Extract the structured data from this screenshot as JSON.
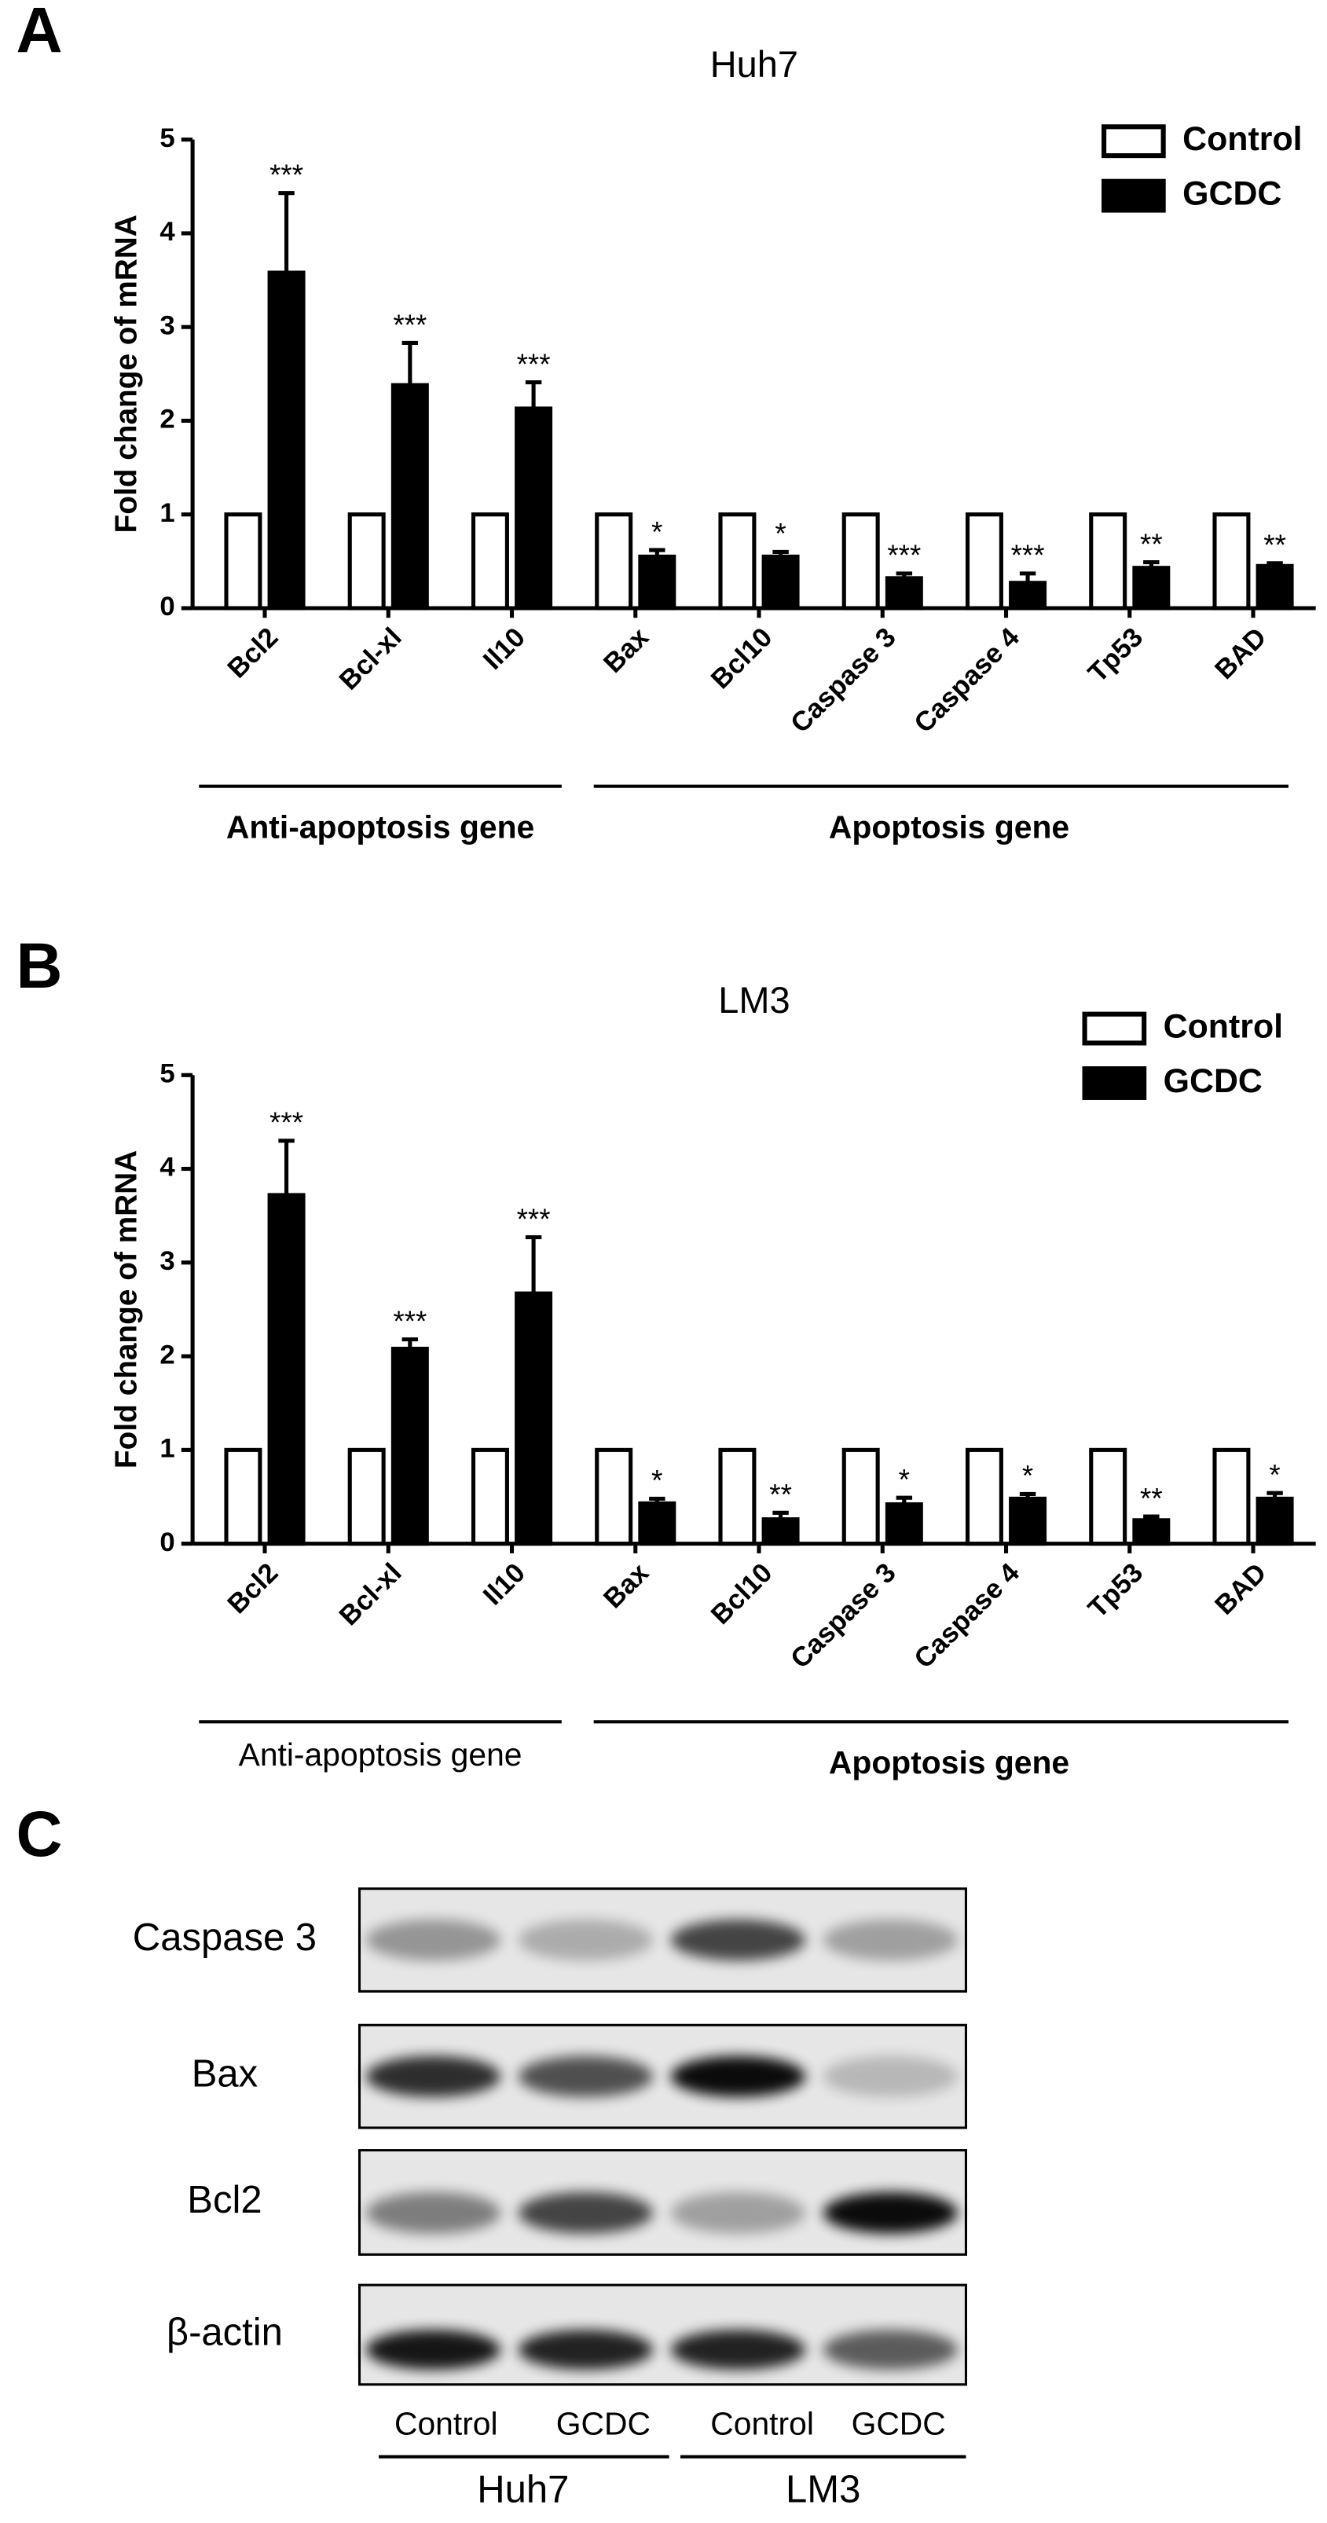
{
  "chart_data": [
    {
      "type": "bar",
      "panel": "A",
      "title": "Huh7",
      "ylabel": "Fold change of mRNA",
      "categories": [
        "Bcl2",
        "Bcl-xl",
        "Il10",
        "Bax",
        "Bcl10",
        "Caspase 3",
        "Caspase 4",
        "Tp53",
        "BAD"
      ],
      "series": [
        {
          "name": "Control",
          "color": "#ffffff",
          "values": [
            1,
            1,
            1,
            1,
            1,
            1,
            1,
            1,
            1
          ]
        },
        {
          "name": "GCDC",
          "color": "#000000",
          "values": [
            3.58,
            2.38,
            2.13,
            0.55,
            0.55,
            0.32,
            0.27,
            0.43,
            0.45
          ],
          "errors": [
            0.85,
            0.45,
            0.28,
            0.07,
            0.05,
            0.05,
            0.1,
            0.06,
            0.03
          ]
        }
      ],
      "annotations": [
        "***",
        "***",
        "***",
        "*",
        "*",
        "***",
        "***",
        "**",
        "**"
      ],
      "group_labels": [
        "Anti-apoptosis gene",
        "Apoptosis gene"
      ],
      "group_label_bold": [
        true,
        true
      ],
      "ylim": [
        0,
        5
      ],
      "yticks": [
        0,
        1,
        2,
        3,
        4,
        5
      ],
      "legend": "upper right"
    },
    {
      "type": "bar",
      "panel": "B",
      "title": "LM3",
      "ylabel": "Fold change of mRNA",
      "categories": [
        "Bcl2",
        "Bcl-xl",
        "Il10",
        "Bax",
        "Bcl10",
        "Caspase 3",
        "Caspase 4",
        "Tp53",
        "BAD"
      ],
      "series": [
        {
          "name": "Control",
          "color": "#ffffff",
          "values": [
            1,
            1,
            1,
            1,
            1,
            1,
            1,
            1,
            1
          ]
        },
        {
          "name": "GCDC",
          "color": "#000000",
          "values": [
            3.72,
            2.08,
            2.67,
            0.43,
            0.26,
            0.42,
            0.48,
            0.25,
            0.48
          ],
          "errors": [
            0.58,
            0.1,
            0.6,
            0.05,
            0.07,
            0.07,
            0.05,
            0.04,
            0.06
          ]
        }
      ],
      "annotations": [
        "***",
        "***",
        "***",
        "*",
        "**",
        "*",
        "*",
        "**",
        "*"
      ],
      "group_labels": [
        "Anti-apoptosis gene",
        "Apoptosis gene"
      ],
      "group_label_bold": [
        false,
        true
      ],
      "ylim": [
        0,
        5
      ],
      "yticks": [
        0,
        1,
        2,
        3,
        4,
        5
      ],
      "legend": "upper right"
    }
  ],
  "blot": {
    "panel": "C",
    "proteins": [
      "Caspase 3",
      "Bax",
      "Bcl2",
      "β-actin"
    ],
    "lanes": [
      "Control",
      "GCDC",
      "Control",
      "GCDC"
    ],
    "cell_lines": [
      "Huh7",
      "LM3"
    ]
  }
}
